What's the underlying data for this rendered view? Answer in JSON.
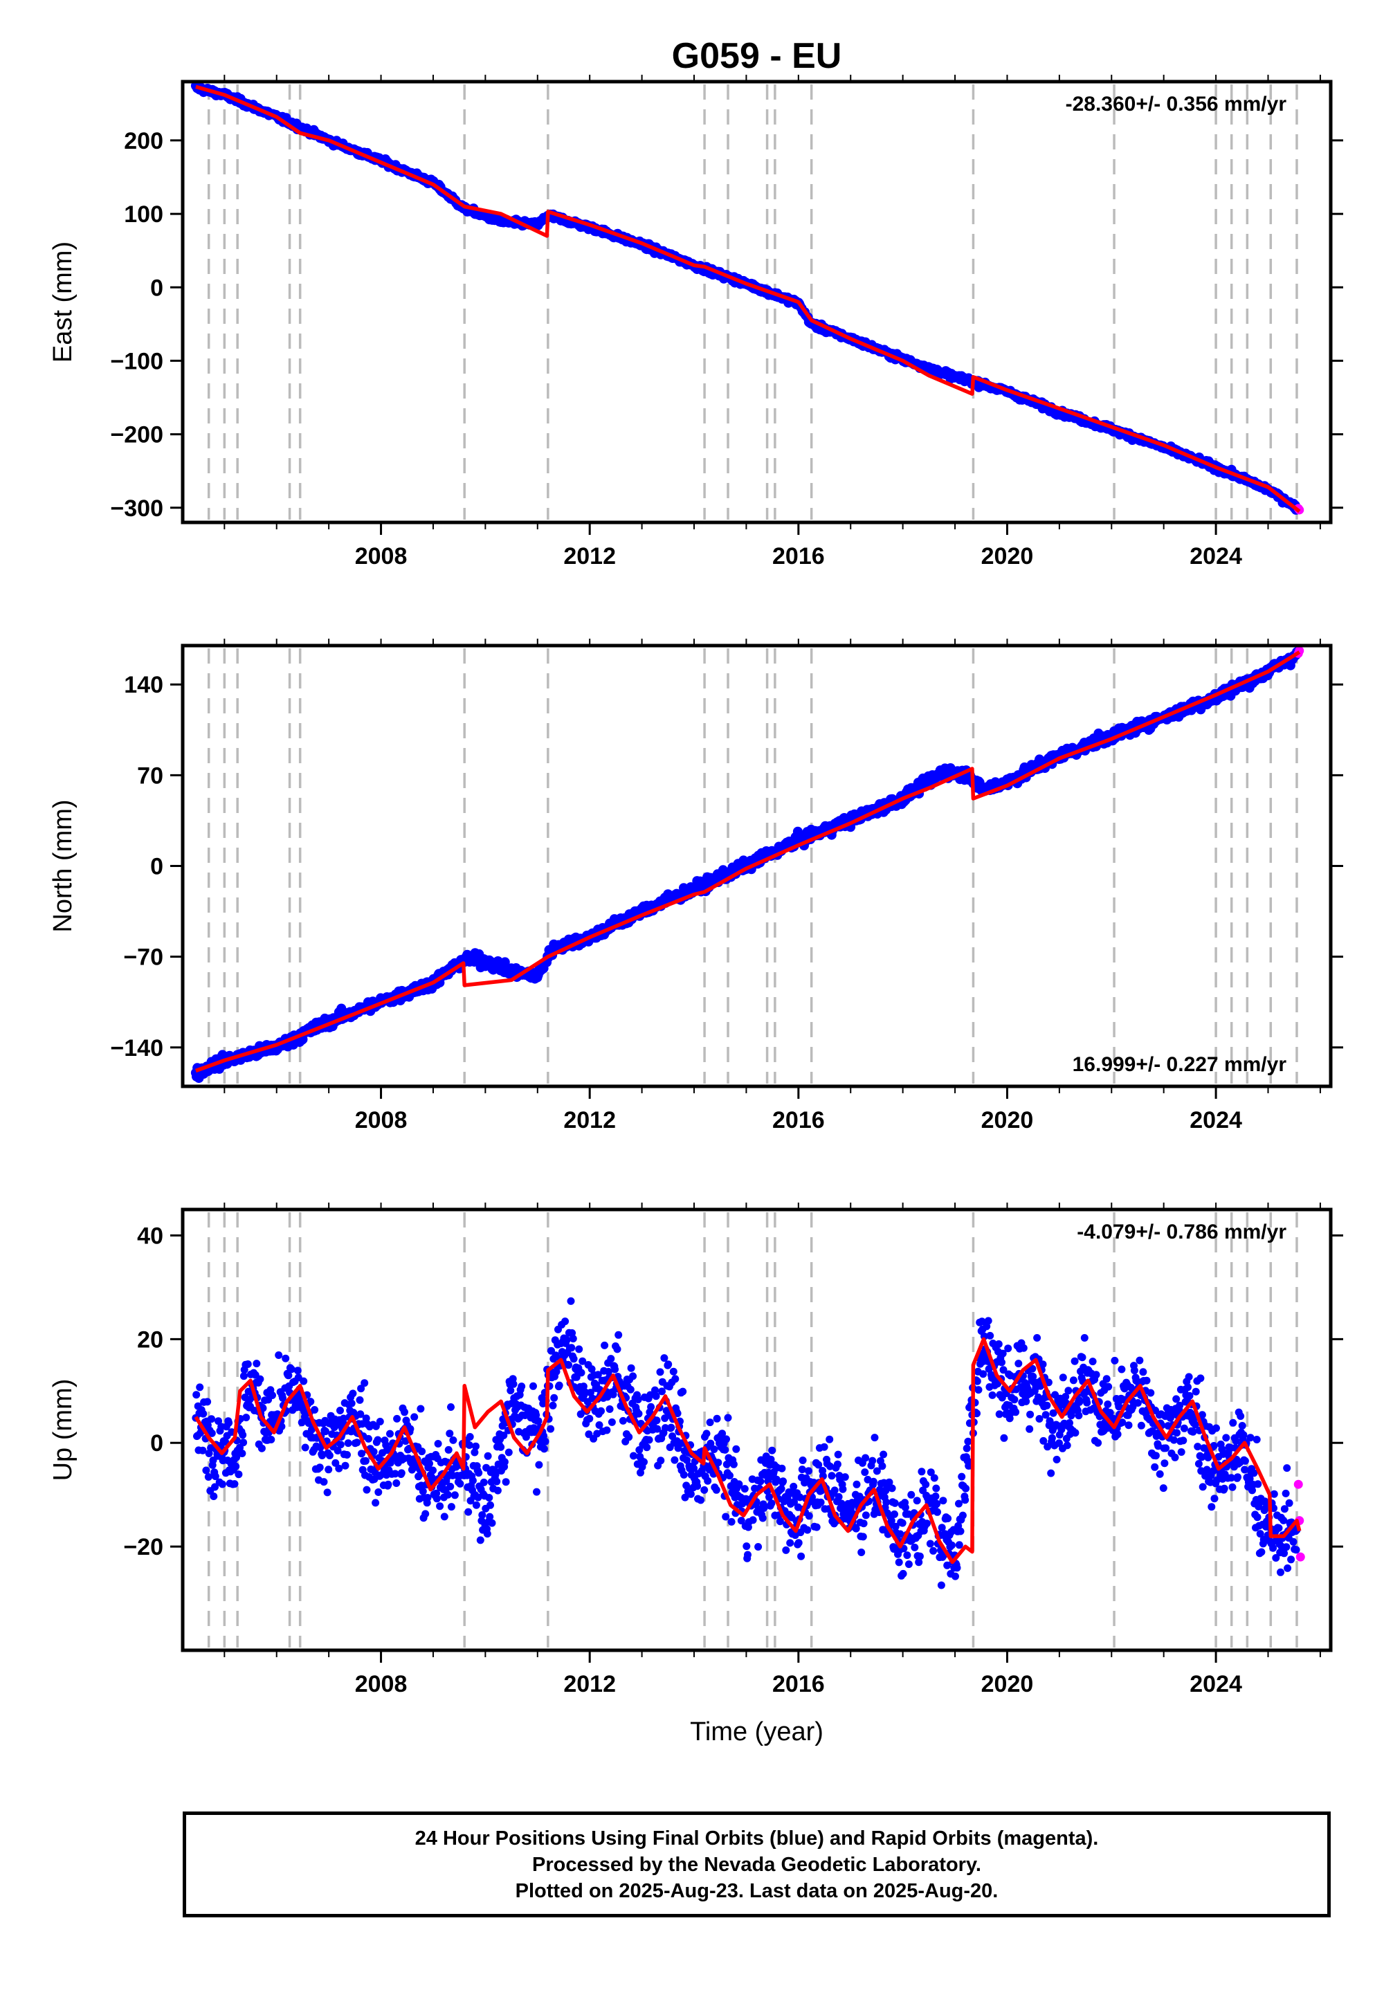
{
  "title": "G059 - EU",
  "xlabel": "Time (year)",
  "footer": {
    "line1": "24 Hour Positions Using Final Orbits (blue) and Rapid Orbits (magenta).",
    "line2": "Processed by the Nevada Geodetic Laboratory.",
    "line3": "Plotted on 2025-Aug-23. Last data on 2025-Aug-20."
  },
  "colors": {
    "final_orbits": "#0000ff",
    "rapid_orbits": "#ff00ff",
    "model_fit": "#ff0000",
    "event_lines": "#bbbbbb",
    "frame": "#000000"
  },
  "chart_data": [
    {
      "type": "scatter",
      "panel": "east",
      "title": "G059 - EU",
      "xlabel": "",
      "ylabel": "East (mm)",
      "rate_label": "-28.360+/- 0.356 mm/yr",
      "rate_position": "top-right",
      "xlim": [
        2004.2,
        2026.2
      ],
      "ylim": [
        -320,
        280
      ],
      "x_ticks": [
        2008,
        2012,
        2016,
        2020,
        2024
      ],
      "x_tick_labels": [
        "2008",
        "2012",
        "2016",
        "2020",
        "2024"
      ],
      "y_ticks": [
        200,
        100,
        0,
        -100,
        -200,
        -300
      ],
      "y_tick_labels": [
        "200",
        "100",
        "0",
        "−100",
        "−200",
        "−300"
      ],
      "event_lines_x": [
        2004.7,
        2005.0,
        2005.25,
        2006.25,
        2006.45,
        2009.6,
        2011.2,
        2014.2,
        2014.65,
        2015.4,
        2015.55,
        2016.25,
        2019.35,
        2022.05,
        2024.0,
        2024.3,
        2024.6,
        2025.05,
        2025.55
      ],
      "series": [
        {
          "name": "Final Orbits",
          "color": "#0000ff",
          "x": [
            2004.45,
            2005.0,
            2006.0,
            2007.0,
            2008.0,
            2009.0,
            2009.6,
            2010.3,
            2011.0,
            2011.2,
            2012.0,
            2013.0,
            2014.0,
            2015.0,
            2016.0,
            2016.25,
            2017.0,
            2018.0,
            2019.0,
            2019.35,
            2020.0,
            2021.0,
            2022.0,
            2023.0,
            2024.0,
            2025.0,
            2025.55
          ],
          "y": [
            272,
            262,
            232,
            200,
            172,
            142,
            107,
            90,
            85,
            98,
            82,
            58,
            30,
            5,
            -22,
            -50,
            -70,
            -98,
            -122,
            -128,
            -142,
            -170,
            -193,
            -218,
            -245,
            -275,
            -300
          ]
        },
        {
          "name": "Rapid Orbits",
          "color": "#ff00ff",
          "x": [
            2025.58,
            2025.6
          ],
          "y": [
            -301,
            -303
          ]
        }
      ],
      "model": {
        "name": "Model",
        "color": "#ff0000",
        "x": [
          2004.45,
          2005.0,
          2006.0,
          2006.45,
          2007.0,
          2008.0,
          2009.0,
          2009.6,
          2010.3,
          2011.18,
          2011.2,
          2012.0,
          2013.0,
          2014.0,
          2014.2,
          2015.0,
          2016.0,
          2016.25,
          2017.0,
          2018.0,
          2018.5,
          2019.33,
          2019.35,
          2020.0,
          2021.0,
          2022.0,
          2023.0,
          2024.0,
          2025.0,
          2025.6
        ],
        "y": [
          273,
          262,
          232,
          210,
          200,
          170,
          140,
          110,
          100,
          70,
          103,
          85,
          60,
          30,
          28,
          5,
          -20,
          -45,
          -70,
          -100,
          -120,
          -145,
          -122,
          -140,
          -165,
          -190,
          -215,
          -245,
          -272,
          -305
        ]
      }
    },
    {
      "type": "scatter",
      "panel": "north",
      "title": "",
      "xlabel": "",
      "ylabel": "North (mm)",
      "rate_label": "16.999+/- 0.227 mm/yr",
      "rate_position": "bottom-right",
      "xlim": [
        2004.2,
        2026.2
      ],
      "ylim": [
        -170,
        170
      ],
      "x_ticks": [
        2008,
        2012,
        2016,
        2020,
        2024
      ],
      "x_tick_labels": [
        "2008",
        "2012",
        "2016",
        "2020",
        "2024"
      ],
      "y_ticks": [
        140,
        70,
        0,
        -70,
        -140
      ],
      "y_tick_labels": [
        "140",
        "70",
        "0",
        "−70",
        "−140"
      ],
      "event_lines_x": [
        2004.7,
        2005.0,
        2005.25,
        2006.25,
        2006.45,
        2009.6,
        2011.2,
        2014.2,
        2014.65,
        2015.4,
        2015.55,
        2016.25,
        2019.35,
        2022.05,
        2024.0,
        2024.3,
        2024.6,
        2025.05,
        2025.55
      ],
      "series": [
        {
          "name": "Final Orbits",
          "color": "#0000ff",
          "x": [
            2004.45,
            2005.0,
            2006.0,
            2007.0,
            2008.0,
            2009.0,
            2009.6,
            2010.0,
            2010.5,
            2011.0,
            2011.3,
            2012.0,
            2013.0,
            2014.0,
            2015.0,
            2016.0,
            2017.0,
            2018.0,
            2018.8,
            2019.3,
            2019.5,
            2020.0,
            2021.0,
            2022.0,
            2023.0,
            2024.0,
            2025.0,
            2025.55
          ],
          "y": [
            -160,
            -150,
            -140,
            -120,
            -105,
            -90,
            -72,
            -73,
            -82,
            -85,
            -63,
            -55,
            -35,
            -18,
            0,
            20,
            35,
            52,
            73,
            70,
            58,
            65,
            85,
            100,
            115,
            130,
            150,
            163
          ]
        },
        {
          "name": "Rapid Orbits",
          "color": "#ff00ff",
          "x": [
            2025.58,
            2025.6
          ],
          "y": [
            164,
            166
          ]
        }
      ],
      "model": {
        "name": "Model",
        "color": "#ff0000",
        "x": [
          2004.45,
          2005.0,
          2006.0,
          2007.0,
          2008.0,
          2009.0,
          2009.58,
          2009.6,
          2010.5,
          2011.2,
          2012.0,
          2013.0,
          2014.0,
          2014.2,
          2015.0,
          2016.0,
          2017.0,
          2018.0,
          2018.5,
          2019.33,
          2019.35,
          2020.0,
          2021.0,
          2022.0,
          2023.0,
          2024.0,
          2025.0,
          2025.6
        ],
        "y": [
          -158,
          -150,
          -138,
          -122,
          -106,
          -90,
          -75,
          -92,
          -88,
          -70,
          -55,
          -38,
          -22,
          -20,
          -2,
          16,
          33,
          52,
          60,
          75,
          52,
          62,
          83,
          98,
          115,
          132,
          150,
          165
        ]
      }
    },
    {
      "type": "scatter",
      "panel": "up",
      "title": "",
      "xlabel": "Time (year)",
      "ylabel": "Up (mm)",
      "rate_label": "-4.079+/- 0.786 mm/yr",
      "rate_position": "top-right",
      "xlim": [
        2004.2,
        2026.2
      ],
      "ylim": [
        -40,
        45
      ],
      "x_ticks": [
        2008,
        2012,
        2016,
        2020,
        2024
      ],
      "x_tick_labels": [
        "2008",
        "2012",
        "2016",
        "2020",
        "2024"
      ],
      "y_ticks": [
        40,
        20,
        0,
        -20
      ],
      "y_tick_labels": [
        "40",
        "20",
        "0",
        "−20"
      ],
      "event_lines_x": [
        2004.7,
        2005.0,
        2005.25,
        2006.25,
        2006.45,
        2009.6,
        2011.2,
        2014.2,
        2014.65,
        2015.4,
        2015.55,
        2016.25,
        2019.35,
        2022.05,
        2024.0,
        2024.3,
        2024.6,
        2025.05,
        2025.55
      ],
      "series": [
        {
          "name": "Final Orbits",
          "color": "#0000ff",
          "x": [
            2004.45,
            2004.8,
            2005.2,
            2005.5,
            2005.9,
            2006.3,
            2006.6,
            2007.0,
            2007.5,
            2008.0,
            2008.5,
            2009.0,
            2009.5,
            2010.0,
            2010.5,
            2011.0,
            2011.5,
            2012.0,
            2012.5,
            2013.0,
            2013.5,
            2014.0,
            2014.5,
            2015.0,
            2015.5,
            2016.0,
            2016.5,
            2017.0,
            2017.5,
            2018.0,
            2018.5,
            2019.0,
            2019.5,
            2020.0,
            2020.5,
            2021.0,
            2021.5,
            2022.0,
            2022.5,
            2023.0,
            2023.5,
            2024.0,
            2024.5,
            2025.0,
            2025.55
          ],
          "y": [
            4,
            0,
            -2,
            12,
            3,
            11,
            3,
            -1,
            5,
            -5,
            0,
            -9,
            -3,
            -12,
            7,
            2,
            20,
            8,
            13,
            1,
            8,
            -7,
            -2,
            -14,
            -6,
            -15,
            -5,
            -14,
            -8,
            -19,
            -12,
            -22,
            19,
            10,
            12,
            4,
            12,
            4,
            10,
            0,
            8,
            -6,
            -1,
            -18,
            -16
          ]
        },
        {
          "name": "Rapid Orbits",
          "color": "#ff00ff",
          "x": [
            2025.58,
            2025.6,
            2025.62
          ],
          "y": [
            -8,
            -15,
            -22
          ]
        }
      ],
      "model": {
        "name": "Model",
        "color": "#ff0000",
        "x": [
          2004.45,
          2004.7,
          2004.95,
          2005.2,
          2005.3,
          2005.5,
          2005.7,
          2005.95,
          2006.2,
          2006.45,
          2006.7,
          2006.95,
          2007.2,
          2007.45,
          2007.7,
          2007.95,
          2008.2,
          2008.45,
          2008.7,
          2008.95,
          2009.2,
          2009.45,
          2009.58,
          2009.6,
          2009.8,
          2010.05,
          2010.3,
          2010.55,
          2010.8,
          2011.05,
          2011.18,
          2011.2,
          2011.45,
          2011.7,
          2011.95,
          2012.2,
          2012.45,
          2012.7,
          2012.95,
          2013.2,
          2013.45,
          2013.7,
          2013.95,
          2014.18,
          2014.2,
          2014.45,
          2014.7,
          2014.95,
          2015.2,
          2015.45,
          2015.7,
          2015.95,
          2016.2,
          2016.45,
          2016.7,
          2016.95,
          2017.2,
          2017.45,
          2017.7,
          2017.95,
          2018.2,
          2018.45,
          2018.7,
          2018.95,
          2019.2,
          2019.33,
          2019.35,
          2019.55,
          2019.8,
          2020.05,
          2020.3,
          2020.55,
          2020.8,
          2021.05,
          2021.3,
          2021.55,
          2021.8,
          2022.05,
          2022.3,
          2022.55,
          2022.8,
          2023.05,
          2023.3,
          2023.55,
          2023.8,
          2024.05,
          2024.3,
          2024.55,
          2024.8,
          2025.03,
          2025.05,
          2025.3,
          2025.55,
          2025.6
        ],
        "y": [
          5,
          1,
          -2,
          1,
          10,
          12,
          5,
          2,
          8,
          11,
          4,
          -1,
          1,
          5,
          -1,
          -5,
          -2,
          3,
          -3,
          -9,
          -6,
          -2,
          -5,
          11,
          3,
          6,
          8,
          1,
          -2,
          2,
          5,
          14,
          16,
          9,
          6,
          9,
          13,
          7,
          2,
          5,
          9,
          3,
          -2,
          -4,
          -1,
          -6,
          -12,
          -14,
          -10,
          -8,
          -14,
          -17,
          -10,
          -7,
          -14,
          -17,
          -12,
          -9,
          -16,
          -20,
          -15,
          -12,
          -19,
          -23,
          -20,
          -21,
          15,
          20,
          13,
          10,
          14,
          16,
          9,
          5,
          9,
          12,
          6,
          3,
          8,
          11,
          5,
          1,
          5,
          8,
          1,
          -5,
          -3,
          0,
          -5,
          -10,
          -18,
          -18,
          -15,
          -17
        ]
      }
    }
  ]
}
